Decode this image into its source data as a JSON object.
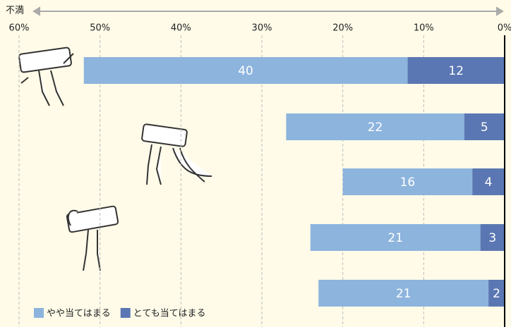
{
  "chart_data": {
    "type": "bar",
    "orientation": "horizontal",
    "stacked": true,
    "reversed_x": true,
    "title": "不満",
    "categories": [
      null,
      null,
      null,
      null,
      null
    ],
    "series": [
      {
        "name": "やや当てはまる",
        "color": "#8db4dd",
        "values": [
          40,
          22,
          16,
          21,
          21
        ]
      },
      {
        "name": "とても当てはまる",
        "color": "#5b77b3",
        "values": [
          12,
          5,
          4,
          3,
          2
        ]
      }
    ],
    "xlim": [
      0,
      60
    ],
    "xticks": [
      {
        "value": 60,
        "label": "60%"
      },
      {
        "value": 50,
        "label": "50%"
      },
      {
        "value": 40,
        "label": "40%"
      },
      {
        "value": 30,
        "label": "30%"
      },
      {
        "value": 20,
        "label": "20%"
      },
      {
        "value": 10,
        "label": "10%"
      },
      {
        "value": 0,
        "label": "0%"
      }
    ],
    "grid": true,
    "legend": "bottom-left"
  }
}
